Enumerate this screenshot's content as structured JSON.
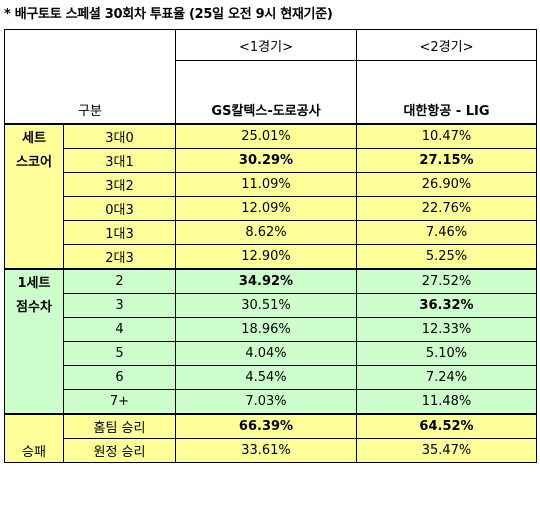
{
  "title": "* 배구토토 스페셜 30회차 투표율 (25일 오전 9시 현재기준)",
  "header": {
    "category_label": "구분",
    "game1_label": "<1경기>",
    "game2_label": "<2경기>",
    "team1": "GS칼텍스-도로공사",
    "team2": "대한항공 - LIG"
  },
  "sections": {
    "set_score": {
      "label_line1": "세트",
      "label_line2": "스코어",
      "rows": [
        {
          "option": "3대0",
          "g1": "25.01%",
          "g2": "10.47%",
          "g1_bold": false,
          "g2_bold": false
        },
        {
          "option": "3대1",
          "g1": "30.29%",
          "g2": "27.15%",
          "g1_bold": true,
          "g2_bold": true
        },
        {
          "option": "3대2",
          "g1": "11.09%",
          "g2": "26.90%",
          "g1_bold": false,
          "g2_bold": false
        },
        {
          "option": "0대3",
          "g1": "12.09%",
          "g2": "22.76%",
          "g1_bold": false,
          "g2_bold": false
        },
        {
          "option": "1대3",
          "g1": "8.62%",
          "g2": "7.46%",
          "g1_bold": false,
          "g2_bold": false
        },
        {
          "option": "2대3",
          "g1": "12.90%",
          "g2": "5.25%",
          "g1_bold": false,
          "g2_bold": false
        }
      ]
    },
    "point_diff": {
      "label_line1": "1세트",
      "label_line2": "점수차",
      "rows": [
        {
          "option": "2",
          "g1": "34.92%",
          "g2": "27.52%",
          "g1_bold": true,
          "g2_bold": false
        },
        {
          "option": "3",
          "g1": "30.51%",
          "g2": "36.32%",
          "g1_bold": false,
          "g2_bold": true
        },
        {
          "option": "4",
          "g1": "18.96%",
          "g2": "12.33%",
          "g1_bold": false,
          "g2_bold": false
        },
        {
          "option": "5",
          "g1": "4.04%",
          "g2": "5.10%",
          "g1_bold": false,
          "g2_bold": false
        },
        {
          "option": "6",
          "g1": "4.54%",
          "g2": "7.24%",
          "g1_bold": false,
          "g2_bold": false
        },
        {
          "option": "7+",
          "g1": "7.03%",
          "g2": "11.48%",
          "g1_bold": false,
          "g2_bold": false
        }
      ]
    },
    "win_loss": {
      "label": "승패",
      "rows": [
        {
          "option": "홈팀 승리",
          "g1": "66.39%",
          "g2": "64.52%",
          "g1_bold": true,
          "g2_bold": true
        },
        {
          "option": "원정 승리",
          "g1": "33.61%",
          "g2": "35.47%",
          "g1_bold": false,
          "g2_bold": false
        }
      ]
    }
  },
  "colors": {
    "yellow": "#ffff99",
    "green": "#ccffcc"
  }
}
